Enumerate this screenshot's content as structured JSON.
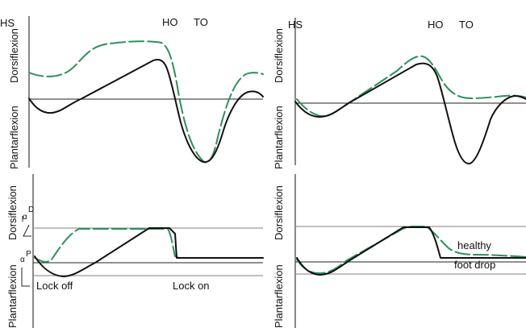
{
  "labels": {
    "hs": "HS",
    "ho": "HO",
    "to": "TO",
    "dorsiflexion": "Dorsiflexion",
    "plantarflexion": "Plantarflexion",
    "alpha": "α",
    "alpha_d_sup": "D",
    "alpha_p_sup": "P",
    "lock_off": "Lock off",
    "lock_on": "Lock on",
    "healthy": "healthy",
    "foot_drop": "foot drop"
  },
  "colors": {
    "black_curve": "#111111",
    "green_curve": "#2f8f5b",
    "reference_line": "#9a9a9a"
  }
}
